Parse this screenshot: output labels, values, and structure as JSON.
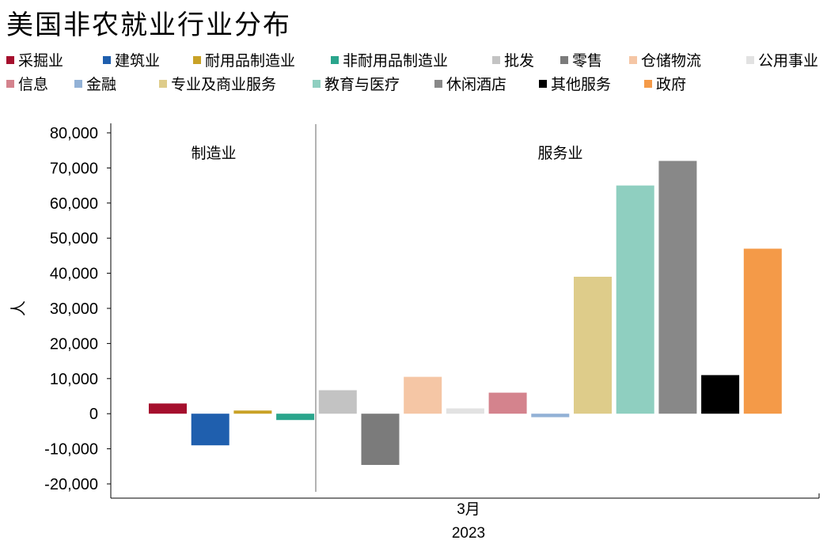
{
  "title": "美国非农就业行业分布",
  "chart_data": {
    "type": "bar",
    "ylabel": "人",
    "ylim": [
      -20000,
      80000
    ],
    "yticks": [
      80000,
      70000,
      60000,
      50000,
      40000,
      30000,
      20000,
      10000,
      0,
      -10000,
      -20000
    ],
    "ytick_labels": [
      "80,000",
      "70,000",
      "60,000",
      "50,000",
      "40,000",
      "30,000",
      "20,000",
      "10,000",
      "0",
      "-10,000",
      "-20,000"
    ],
    "x_category": "3月",
    "x_year": "2023",
    "annotations": {
      "manufacturing": "制造业",
      "services": "服务业"
    },
    "legend_rows": [
      [
        "采掘业",
        "建筑业",
        "耐用品制造业",
        "非耐用品制造业",
        "批发",
        "零售",
        "仓储物流",
        "公用事业"
      ],
      [
        "信息",
        "金融",
        "专业及商业服务",
        "教育与医疗",
        "休闲酒店",
        "其他服务",
        "政府"
      ]
    ],
    "series": [
      {
        "name": "采掘业",
        "value": 2900,
        "color": "#a50f2d"
      },
      {
        "name": "建筑业",
        "value": -9000,
        "color": "#1f5fae"
      },
      {
        "name": "耐用品制造业",
        "value": 900,
        "color": "#c9a227"
      },
      {
        "name": "非耐用品制造业",
        "value": -1800,
        "color": "#2aa58c"
      },
      {
        "name": "批发",
        "value": 6700,
        "color": "#c3c3c3"
      },
      {
        "name": "零售",
        "value": -14600,
        "color": "#7b7b7b"
      },
      {
        "name": "仓储物流",
        "value": 10500,
        "color": "#f5c6a5"
      },
      {
        "name": "公用事业",
        "value": 1500,
        "color": "#e2e2e2"
      },
      {
        "name": "信息",
        "value": 6000,
        "color": "#d4838d"
      },
      {
        "name": "金融",
        "value": -1000,
        "color": "#92b1d6"
      },
      {
        "name": "专业及商业服务",
        "value": 39000,
        "color": "#decc8a"
      },
      {
        "name": "教育与医疗",
        "value": 65000,
        "color": "#8fcfc0"
      },
      {
        "name": "休闲酒店",
        "value": 72000,
        "color": "#888888"
      },
      {
        "name": "其他服务",
        "value": 11000,
        "color": "#000000"
      },
      {
        "name": "政府",
        "value": 47000,
        "color": "#f49a48"
      }
    ]
  }
}
